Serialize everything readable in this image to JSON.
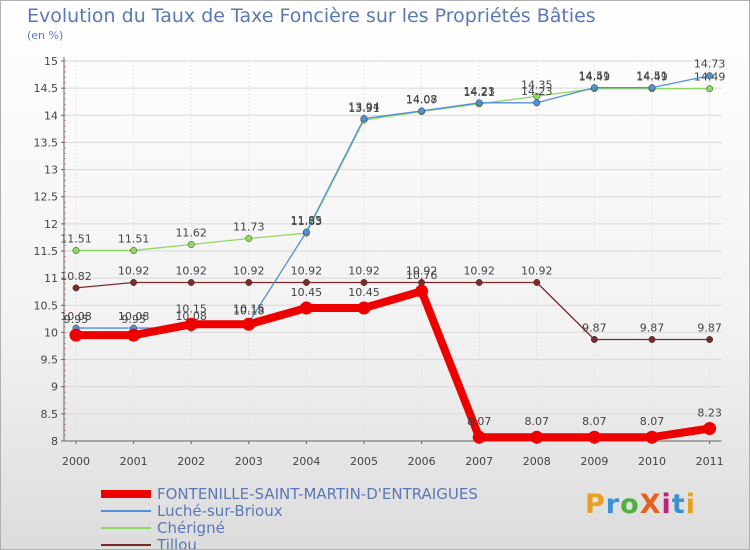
{
  "header": {
    "title": "Evolution du Taux de Taxe Foncière sur les Propriétés Bâties",
    "subtitle": "(en %)"
  },
  "logo": {
    "text": "ProXiti",
    "colors": [
      "#e8a020",
      "#3a90d0",
      "#50b040",
      "#e86020",
      "#c02080",
      "#3a90d0",
      "#e8a020"
    ]
  },
  "chart_data": {
    "type": "line",
    "title": "Evolution du Taux de Taxe Foncière sur les Propriétés Bâties",
    "ylabel": "(en %)",
    "xlabel": "",
    "ylim": [
      8,
      15
    ],
    "yticks": [
      "8",
      "8.5",
      "9",
      "9.5",
      "10",
      "10.5",
      "11",
      "11.5",
      "12",
      "12.5",
      "13",
      "13.5",
      "14",
      "14.5",
      "15"
    ],
    "categories": [
      "2000",
      "2001",
      "2002",
      "2003",
      "2004",
      "2005",
      "2006",
      "2007",
      "2008",
      "2009",
      "2010",
      "2011"
    ],
    "legend_position": "bottom-left",
    "series": [
      {
        "name": "Tillou",
        "color": "#7a2a2a",
        "values": [
          10.82,
          10.92,
          10.92,
          10.92,
          10.92,
          10.92,
          10.92,
          10.92,
          10.92,
          9.87,
          9.87,
          9.87
        ],
        "labels": [
          "10.82",
          "10.92",
          "10.92",
          "10.92",
          "10.92",
          "10.92",
          "10.92",
          "10.92",
          "10.92",
          "9.87",
          "9.87",
          "9.87"
        ]
      },
      {
        "name": "Chérigné",
        "color": "#90d860",
        "values": [
          11.51,
          11.51,
          11.62,
          11.73,
          11.83,
          13.91,
          14.07,
          14.21,
          14.35,
          14.49,
          14.49,
          14.49
        ],
        "labels": [
          "11.51",
          "11.51",
          "11.62",
          "11.73",
          "11.83",
          "13.91",
          "14.07",
          "14.21",
          "14.35",
          "14.49",
          "14.49",
          "14.49"
        ]
      },
      {
        "name": "Luché-sur-Brioux",
        "color": "#5090d8",
        "values": [
          10.08,
          10.08,
          10.08,
          10.18,
          11.85,
          13.94,
          14.08,
          14.23,
          14.23,
          14.51,
          14.51,
          14.73
        ],
        "labels": [
          "10.08",
          "10.08",
          "10.08",
          "10.18",
          "11.85",
          "13.94",
          "14.08",
          "14.23",
          "14.23",
          "14.51",
          "14.51",
          "14.73"
        ]
      },
      {
        "name": "FONTENILLE-SAINT-MARTIN-D'ENTRAIGUES",
        "color": "#ee0000",
        "values": [
          9.95,
          9.95,
          10.15,
          10.15,
          10.45,
          10.45,
          10.76,
          8.07,
          8.07,
          8.07,
          8.07,
          8.23
        ],
        "labels": [
          "9.95",
          "9.95",
          "10.15",
          "10.15",
          "10.45",
          "10.45",
          "10.76",
          "8.07",
          "8.07",
          "8.07",
          "8.07",
          "8.23"
        ]
      }
    ]
  },
  "legend": [
    {
      "label": "FONTENILLE-SAINT-MARTIN-D'ENTRAIGUES",
      "color": "#ee0000",
      "thick": true
    },
    {
      "label": "Luché-sur-Brioux",
      "color": "#5090d8",
      "thick": false
    },
    {
      "label": "Chérigné",
      "color": "#90d860",
      "thick": false
    },
    {
      "label": "Tillou",
      "color": "#7a2a2a",
      "thick": false
    }
  ]
}
